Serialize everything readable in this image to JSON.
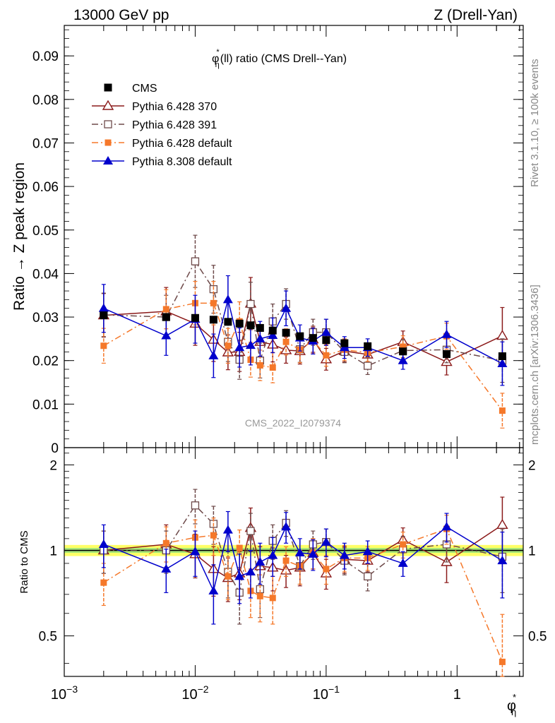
{
  "header": {
    "left": "13000 GeV pp",
    "right": "Z (Drell-Yan)"
  },
  "side_labels": {
    "rivet": "Rivet 3.1.10, ≥ 100k events",
    "mcplots": "mcplots.cern.ch [arXiv:1306.3436]"
  },
  "analysis_tag": "CMS_2022_I2079374",
  "chart_data": [
    {
      "type": "scatter",
      "panel": "main",
      "title": "φ*η(ll) ratio (CMS Drell--Yan)",
      "title_parts": {
        "base": "φ",
        "sup": "*",
        "sub": "η",
        "rest": "(ll) ratio (CMS Drell--Yan)"
      },
      "ylabel": "Ratio → Z peak region",
      "xscale": "log",
      "xlim": [
        0.001,
        3.2
      ],
      "ylim": [
        0,
        0.097
      ],
      "y_ticks": [
        0,
        0.01,
        0.02,
        0.03,
        0.04,
        0.05,
        0.06,
        0.07,
        0.08,
        0.09
      ],
      "y_tick_labels": [
        "0",
        "0.01",
        "0.02",
        "0.03",
        "0.04",
        "0.05",
        "0.06",
        "0.07",
        "0.08",
        "0.09"
      ],
      "legend_position": "top-left",
      "x": [
        0.002,
        0.006,
        0.01,
        0.0138,
        0.0178,
        0.0218,
        0.0265,
        0.0313,
        0.0391,
        0.0494,
        0.0631,
        0.0794,
        0.1,
        0.138,
        0.2075,
        0.386,
        0.832,
        2.216
      ],
      "series": [
        {
          "name": "CMS",
          "color": "#000000",
          "marker": "filled-square",
          "line": "none",
          "values": [
            0.0304,
            0.03,
            0.0298,
            0.0294,
            0.0289,
            0.0285,
            0.0281,
            0.0275,
            0.0269,
            0.0264,
            0.0256,
            0.0252,
            0.0247,
            0.024,
            0.0233,
            0.0221,
            0.0215,
            0.021
          ],
          "errors": [
            0.0004,
            0.0004,
            0.0004,
            0.0004,
            0.0004,
            0.0004,
            0.0004,
            0.0004,
            0.0004,
            0.0004,
            0.0004,
            0.0004,
            0.0004,
            0.0004,
            0.0004,
            0.0004,
            0.0004,
            0.0004
          ]
        },
        {
          "name": "Pythia 6.428 370",
          "color": "#8b1a1a",
          "marker": "open-triangle",
          "line": "solid",
          "values": [
            0.0304,
            0.0313,
            0.0285,
            0.0248,
            0.0219,
            0.022,
            0.0331,
            0.0243,
            0.0237,
            0.0224,
            0.0222,
            0.0249,
            0.0203,
            0.0222,
            0.0214,
            0.0243,
            0.0197,
            0.0257
          ],
          "errors": [
            0.005,
            0.0055,
            0.005,
            0.005,
            0.004,
            0.0045,
            0.006,
            0.004,
            0.004,
            0.003,
            0.003,
            0.003,
            0.0025,
            0.0025,
            0.002,
            0.0025,
            0.003,
            0.0065
          ]
        },
        {
          "name": "Pythia 6.428 391",
          "color": "#6e4a4a",
          "marker": "open-square",
          "line": "dash-dot",
          "values": [
            0.0305,
            0.03,
            0.0428,
            0.0364,
            0.0243,
            0.0202,
            0.033,
            0.02,
            0.029,
            0.033,
            0.0226,
            0.0265,
            0.0265,
            0.022,
            0.0188,
            0.0223,
            0.0225,
            0.02
          ],
          "errors": [
            0.005,
            0.005,
            0.006,
            0.0055,
            0.0045,
            0.0045,
            0.005,
            0.004,
            0.004,
            0.0035,
            0.003,
            0.003,
            0.003,
            0.0025,
            0.002,
            0.0025,
            0.003,
            0.005
          ]
        },
        {
          "name": "Pythia 6.428 default",
          "color": "#f5782a",
          "marker": "filled-square-small",
          "line": "dash-dot",
          "values": [
            0.0234,
            0.0318,
            0.0332,
            0.0332,
            0.0234,
            0.029,
            0.0202,
            0.0189,
            0.0184,
            0.0243,
            0.0225,
            0.0246,
            0.0212,
            0.0225,
            0.0218,
            0.0232,
            0.0256,
            0.0085
          ],
          "errors": [
            0.004,
            0.0045,
            0.005,
            0.005,
            0.004,
            0.0045,
            0.004,
            0.0035,
            0.0035,
            0.003,
            0.003,
            0.003,
            0.0025,
            0.0025,
            0.002,
            0.0025,
            0.003,
            0.004
          ]
        },
        {
          "name": "Pythia 8.308 default",
          "color": "#0000cc",
          "marker": "filled-triangle",
          "line": "solid",
          "values": [
            0.032,
            0.0257,
            0.0295,
            0.0211,
            0.034,
            0.023,
            0.0235,
            0.025,
            0.0258,
            0.032,
            0.0252,
            0.0245,
            0.0265,
            0.023,
            0.023,
            0.02,
            0.026,
            0.0193
          ],
          "errors": [
            0.0055,
            0.0045,
            0.0055,
            0.005,
            0.0055,
            0.0045,
            0.0045,
            0.004,
            0.004,
            0.004,
            0.003,
            0.003,
            0.003,
            0.0025,
            0.002,
            0.002,
            0.003,
            0.005
          ]
        }
      ]
    },
    {
      "type": "scatter",
      "panel": "ratio",
      "xlabel": "φ*η",
      "xlabel_parts": {
        "base": "φ",
        "sup": "*",
        "sub": "η"
      },
      "ylabel": "Ratio to CMS",
      "xscale": "log",
      "xlim": [
        0.001,
        3.2
      ],
      "ylim": [
        0.36,
        2.3
      ],
      "y_ticks": [
        0.5,
        1,
        2
      ],
      "y_tick_labels": [
        "0.5",
        "1",
        "2"
      ],
      "x_tick_labels": [
        "10",
        "10",
        "10",
        "1"
      ],
      "x_tick_exponents": [
        "−3",
        "−2",
        "−1",
        ""
      ],
      "x_tick_values": [
        0.001,
        0.01,
        0.1,
        1
      ],
      "reference": 1,
      "bands": [
        {
          "half_width": 0.045,
          "color": "#ffff66"
        },
        {
          "half_width": 0.02,
          "color": "#a8e87a"
        }
      ],
      "series": [
        {
          "name": "Pythia 6.428 370",
          "color": "#8b1a1a",
          "marker": "open-triangle",
          "line": "solid",
          "values": [
            1.0,
            1.05,
            0.97,
            0.86,
            0.8,
            0.83,
            1.2,
            0.88,
            0.87,
            0.85,
            0.87,
            0.98,
            0.83,
            0.93,
            0.92,
            1.09,
            0.91,
            1.23
          ],
          "errors": [
            0.17,
            0.18,
            0.17,
            0.17,
            0.14,
            0.16,
            0.21,
            0.15,
            0.15,
            0.11,
            0.12,
            0.12,
            0.1,
            0.1,
            0.08,
            0.11,
            0.14,
            0.31
          ]
        },
        {
          "name": "Pythia 6.428 391",
          "color": "#6e4a4a",
          "marker": "open-square",
          "line": "dash-dot",
          "values": [
            1.0,
            1.0,
            1.44,
            1.24,
            0.84,
            0.71,
            1.17,
            0.73,
            1.08,
            1.25,
            0.88,
            1.05,
            1.07,
            0.92,
            0.81,
            1.01,
            1.05,
            0.95
          ],
          "errors": [
            0.17,
            0.17,
            0.2,
            0.19,
            0.16,
            0.16,
            0.18,
            0.15,
            0.15,
            0.13,
            0.12,
            0.12,
            0.12,
            0.1,
            0.09,
            0.11,
            0.14,
            0.24
          ]
        },
        {
          "name": "Pythia 6.428 default",
          "color": "#f5782a",
          "marker": "filled-square-small",
          "line": "dash-dot",
          "values": [
            0.77,
            1.06,
            1.11,
            1.13,
            0.81,
            1.02,
            0.72,
            0.69,
            0.68,
            0.92,
            0.88,
            0.98,
            0.86,
            0.94,
            0.94,
            1.05,
            1.19,
            0.405
          ],
          "errors": [
            0.13,
            0.15,
            0.17,
            0.17,
            0.14,
            0.16,
            0.14,
            0.13,
            0.13,
            0.11,
            0.12,
            0.12,
            0.1,
            0.1,
            0.09,
            0.11,
            0.14,
            0.19
          ]
        },
        {
          "name": "Pythia 8.308 default",
          "color": "#0000cc",
          "marker": "filled-triangle",
          "line": "solid",
          "values": [
            1.05,
            0.86,
            0.99,
            0.72,
            1.18,
            0.81,
            0.84,
            0.91,
            0.96,
            1.21,
            0.98,
            0.97,
            1.07,
            0.96,
            0.99,
            0.9,
            1.21,
            0.92
          ],
          "errors": [
            0.18,
            0.15,
            0.18,
            0.17,
            0.19,
            0.16,
            0.16,
            0.15,
            0.15,
            0.15,
            0.12,
            0.12,
            0.12,
            0.1,
            0.09,
            0.09,
            0.14,
            0.24
          ]
        }
      ]
    }
  ]
}
